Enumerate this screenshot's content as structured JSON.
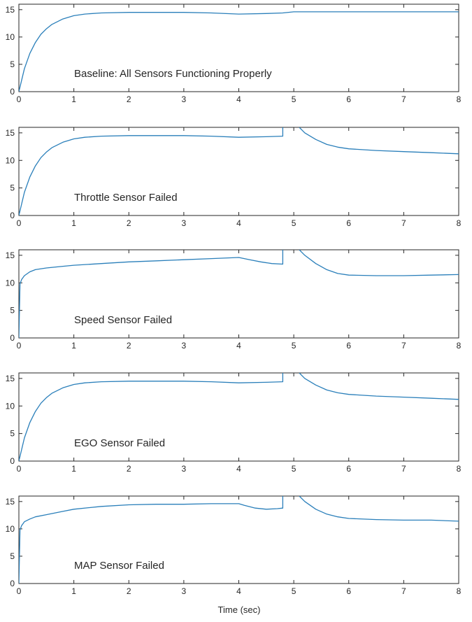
{
  "figure": {
    "xlabel": "Time (sec)",
    "line_color": "#2a7fba"
  },
  "chart_data": [
    {
      "type": "line",
      "annotation": "Baseline: All Sensors Functioning Properly",
      "xlim": [
        0,
        8
      ],
      "ylim": [
        0,
        16
      ],
      "xticks": [
        0,
        1,
        2,
        3,
        4,
        5,
        6,
        7,
        8
      ],
      "yticks": [
        0,
        5,
        10,
        15
      ],
      "series": [
        {
          "segments": [
            {
              "x": [
                0,
                0.1,
                0.2,
                0.3,
                0.4,
                0.5,
                0.6,
                0.8,
                1.0,
                1.2,
                1.5,
                2.0,
                2.5,
                3.0,
                3.5,
                4.0,
                4.5,
                4.8,
                5.0,
                5.5,
                6.0,
                6.5,
                7.0,
                7.5,
                8.0
              ],
              "y": [
                0,
                4.2,
                7.0,
                9.0,
                10.5,
                11.5,
                12.3,
                13.3,
                13.9,
                14.2,
                14.4,
                14.5,
                14.5,
                14.5,
                14.4,
                14.2,
                14.3,
                14.4,
                14.6,
                14.6,
                14.6,
                14.6,
                14.6,
                14.6,
                14.6
              ]
            }
          ]
        }
      ]
    },
    {
      "type": "line",
      "annotation": "Throttle Sensor Failed",
      "xlim": [
        0,
        8
      ],
      "ylim": [
        0,
        16
      ],
      "xticks": [
        0,
        1,
        2,
        3,
        4,
        5,
        6,
        7,
        8
      ],
      "yticks": [
        0,
        5,
        10,
        15
      ],
      "series": [
        {
          "segments": [
            {
              "x": [
                0,
                0.1,
                0.2,
                0.3,
                0.4,
                0.5,
                0.6,
                0.8,
                1.0,
                1.2,
                1.5,
                2.0,
                2.5,
                3.0,
                3.5,
                4.0,
                4.5,
                4.8,
                4.8
              ],
              "y": [
                0,
                4.2,
                7.0,
                9.0,
                10.5,
                11.5,
                12.3,
                13.3,
                13.9,
                14.2,
                14.4,
                14.5,
                14.5,
                14.5,
                14.4,
                14.2,
                14.3,
                14.4,
                16
              ]
            },
            {
              "x": [
                5.1,
                5.2,
                5.4,
                5.6,
                5.8,
                6.0,
                6.5,
                7.0,
                7.5,
                8.0
              ],
              "y": [
                16,
                15.0,
                13.8,
                12.9,
                12.4,
                12.1,
                11.8,
                11.6,
                11.4,
                11.2
              ]
            }
          ]
        }
      ]
    },
    {
      "type": "line",
      "annotation": "Speed Sensor Failed",
      "xlim": [
        0,
        8
      ],
      "ylim": [
        0,
        16
      ],
      "xticks": [
        0,
        1,
        2,
        3,
        4,
        5,
        6,
        7,
        8
      ],
      "yticks": [
        0,
        5,
        10,
        15
      ],
      "series": [
        {
          "segments": [
            {
              "x": [
                0,
                0.02,
                0.05,
                0.1,
                0.2,
                0.3,
                0.5,
                0.8,
                1.0,
                1.5,
                2.0,
                2.5,
                3.0,
                3.5,
                4.0,
                4.2,
                4.4,
                4.6,
                4.8,
                4.8
              ],
              "y": [
                0,
                9.8,
                10.6,
                11.3,
                12.0,
                12.4,
                12.7,
                13.0,
                13.2,
                13.5,
                13.8,
                14.0,
                14.2,
                14.4,
                14.6,
                14.2,
                13.8,
                13.5,
                13.4,
                16
              ]
            },
            {
              "x": [
                5.1,
                5.2,
                5.4,
                5.6,
                5.8,
                6.0,
                6.5,
                7.0,
                7.5,
                8.0
              ],
              "y": [
                16,
                15.0,
                13.5,
                12.4,
                11.7,
                11.4,
                11.3,
                11.3,
                11.4,
                11.5
              ]
            }
          ]
        }
      ]
    },
    {
      "type": "line",
      "annotation": "EGO Sensor Failed",
      "xlim": [
        0,
        8
      ],
      "ylim": [
        0,
        16
      ],
      "xticks": [
        0,
        1,
        2,
        3,
        4,
        5,
        6,
        7,
        8
      ],
      "yticks": [
        0,
        5,
        10,
        15
      ],
      "series": [
        {
          "segments": [
            {
              "x": [
                0,
                0.1,
                0.2,
                0.3,
                0.4,
                0.5,
                0.6,
                0.8,
                1.0,
                1.2,
                1.5,
                2.0,
                2.5,
                3.0,
                3.5,
                4.0,
                4.5,
                4.8,
                4.8
              ],
              "y": [
                0,
                4.2,
                7.0,
                9.0,
                10.5,
                11.5,
                12.3,
                13.3,
                13.9,
                14.2,
                14.4,
                14.5,
                14.5,
                14.5,
                14.4,
                14.2,
                14.3,
                14.4,
                16
              ]
            },
            {
              "x": [
                5.1,
                5.2,
                5.4,
                5.6,
                5.8,
                6.0,
                6.5,
                7.0,
                7.5,
                8.0
              ],
              "y": [
                16,
                15.0,
                13.8,
                12.9,
                12.4,
                12.1,
                11.8,
                11.6,
                11.4,
                11.2
              ]
            }
          ]
        }
      ]
    },
    {
      "type": "line",
      "annotation": "MAP Sensor Failed",
      "xlim": [
        0,
        8
      ],
      "ylim": [
        0,
        16
      ],
      "xticks": [
        0,
        1,
        2,
        3,
        4,
        5,
        6,
        7,
        8
      ],
      "yticks": [
        0,
        5,
        10,
        15
      ],
      "series": [
        {
          "segments": [
            {
              "x": [
                0,
                0.02,
                0.05,
                0.1,
                0.2,
                0.3,
                0.5,
                0.8,
                1.0,
                1.5,
                2.0,
                2.5,
                3.0,
                3.5,
                4.0,
                4.1,
                4.3,
                4.5,
                4.7,
                4.8,
                4.8
              ],
              "y": [
                0,
                9.8,
                10.6,
                11.3,
                11.8,
                12.2,
                12.6,
                13.2,
                13.6,
                14.1,
                14.4,
                14.5,
                14.5,
                14.6,
                14.6,
                14.3,
                13.8,
                13.6,
                13.7,
                13.8,
                16
              ]
            },
            {
              "x": [
                5.1,
                5.2,
                5.4,
                5.6,
                5.8,
                6.0,
                6.5,
                7.0,
                7.5,
                8.0
              ],
              "y": [
                16,
                15.0,
                13.6,
                12.7,
                12.2,
                11.9,
                11.7,
                11.6,
                11.6,
                11.4
              ]
            }
          ]
        }
      ]
    }
  ]
}
